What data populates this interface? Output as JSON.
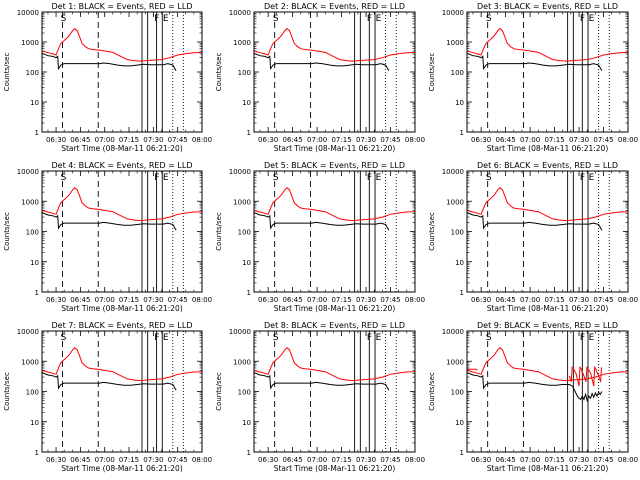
{
  "chart_data": [
    {
      "type": "line",
      "title": "Det 1: BLACK = Events, RED = LLD",
      "ylabel": "Counts/sec",
      "xlabel": "Start Time (08-Mar-11 06:21:20)",
      "noisy_end": false
    },
    {
      "type": "line",
      "title": "Det 2: BLACK = Events, RED = LLD",
      "ylabel": "Counts/sec",
      "xlabel": "Start Time (08-Mar-11 06:21:20)",
      "noisy_end": false
    },
    {
      "type": "line",
      "title": "Det 3: BLACK = Events, RED = LLD",
      "ylabel": "Counts/sec",
      "xlabel": "Start Time (08-Mar-11 06:21:20)",
      "noisy_end": false
    },
    {
      "type": "line",
      "title": "Det 4: BLACK = Events, RED = LLD",
      "ylabel": "Counts/sec",
      "xlabel": "Start Time (08-Mar-11 06:21:20)",
      "noisy_end": false
    },
    {
      "type": "line",
      "title": "Det 5: BLACK = Events, RED = LLD",
      "ylabel": "Counts/sec",
      "xlabel": "Start Time (08-Mar-11 06:21:20)",
      "noisy_end": false
    },
    {
      "type": "line",
      "title": "Det 6: BLACK = Events, RED = LLD",
      "ylabel": "Counts/sec",
      "xlabel": "Start Time (08-Mar-11 06:21:20)",
      "noisy_end": false
    },
    {
      "type": "line",
      "title": "Det 7: BLACK = Events, RED = LLD",
      "ylabel": "Counts/sec",
      "xlabel": "Start Time (08-Mar-11 06:21:20)",
      "noisy_end": false
    },
    {
      "type": "line",
      "title": "Det 8: BLACK = Events, RED = LLD",
      "ylabel": "Counts/sec",
      "xlabel": "Start Time (08-Mar-11 06:21:20)",
      "noisy_end": false
    },
    {
      "type": "line",
      "title": "Det 9: BLACK = Events, RED = LLD",
      "ylabel": "Counts/sec",
      "xlabel": "Start Time (08-Mar-11 06:21:20)",
      "noisy_end": true
    }
  ],
  "shared": {
    "x_tick_labels": [
      "06:30",
      "06:45",
      "07:00",
      "07:15",
      "07:30",
      "07:45",
      "08:00"
    ],
    "x_ticks_min": [
      30,
      45,
      60,
      75,
      90,
      105,
      120
    ],
    "xlim_min": [
      21.33,
      120
    ],
    "ylim": [
      1,
      10000
    ],
    "y_scale": "log",
    "y_tick_values": [
      1,
      10,
      100,
      1000,
      10000
    ],
    "y_tick_labels": [
      "1",
      "10",
      "100",
      "1000",
      "10000"
    ],
    "dashed_lines_min": [
      34,
      56
    ],
    "solid_lines_min": [
      83,
      86.5,
      92,
      95.5
    ],
    "dotted_lines_min": [
      102,
      108.5
    ],
    "markers": [
      {
        "label": "S",
        "min": 34
      },
      {
        "label": "F",
        "min": 91.5
      },
      {
        "label": "E",
        "min": 97
      }
    ],
    "red_lld": [
      [
        21.33,
        500
      ],
      [
        25,
        440
      ],
      [
        28,
        400
      ],
      [
        30,
        370
      ],
      [
        31.5,
        600
      ],
      [
        33,
        900
      ],
      [
        36,
        1250
      ],
      [
        38,
        1600
      ],
      [
        40,
        2300
      ],
      [
        41.5,
        2800
      ],
      [
        43,
        2400
      ],
      [
        44.5,
        1500
      ],
      [
        46,
        900
      ],
      [
        48,
        700
      ],
      [
        50,
        600
      ],
      [
        53,
        560
      ],
      [
        56,
        540
      ],
      [
        60,
        500
      ],
      [
        65,
        450
      ],
      [
        70,
        330
      ],
      [
        74,
        260
      ],
      [
        78,
        240
      ],
      [
        82,
        230
      ],
      [
        86,
        240
      ],
      [
        90,
        250
      ],
      [
        95,
        260
      ],
      [
        100,
        300
      ],
      [
        105,
        370
      ],
      [
        110,
        410
      ],
      [
        115,
        440
      ],
      [
        120,
        450
      ]
    ],
    "black_events": [
      [
        21.33,
        420
      ],
      [
        25,
        350
      ],
      [
        28,
        330
      ],
      [
        30,
        300
      ],
      [
        31,
        330
      ],
      [
        31.5,
        130
      ],
      [
        33,
        170
      ],
      [
        35,
        190
      ],
      [
        57,
        190
      ],
      [
        59,
        200
      ],
      [
        63,
        190
      ],
      [
        68,
        170
      ],
      [
        72,
        160
      ],
      [
        76,
        160
      ],
      [
        80,
        170
      ],
      [
        84,
        180
      ],
      [
        88,
        175
      ],
      [
        92,
        175
      ],
      [
        96,
        175
      ],
      [
        99,
        190
      ],
      [
        102,
        170
      ],
      [
        104,
        110
      ]
    ],
    "black_events_noisy": [
      [
        21.33,
        420
      ],
      [
        25,
        350
      ],
      [
        28,
        330
      ],
      [
        30,
        300
      ],
      [
        31,
        330
      ],
      [
        31.5,
        130
      ],
      [
        33,
        170
      ],
      [
        35,
        190
      ],
      [
        57,
        190
      ],
      [
        59,
        200
      ],
      [
        63,
        190
      ],
      [
        68,
        170
      ],
      [
        72,
        160
      ],
      [
        76,
        160
      ],
      [
        80,
        170
      ],
      [
        84,
        170
      ],
      [
        86,
        150
      ],
      [
        88,
        90
      ],
      [
        89,
        70
      ],
      [
        90,
        60
      ],
      [
        91,
        55
      ],
      [
        92,
        70
      ],
      [
        93,
        55
      ],
      [
        94,
        80
      ],
      [
        95,
        50
      ],
      [
        96,
        70
      ],
      [
        97,
        60
      ],
      [
        98,
        85
      ],
      [
        99,
        65
      ],
      [
        100,
        90
      ],
      [
        101,
        70
      ],
      [
        102,
        95
      ],
      [
        103,
        80
      ],
      [
        104,
        100
      ]
    ],
    "colors": {
      "lld": "#ff0000",
      "events": "#000000",
      "axes": "#000000",
      "background": "#ffffff"
    }
  }
}
